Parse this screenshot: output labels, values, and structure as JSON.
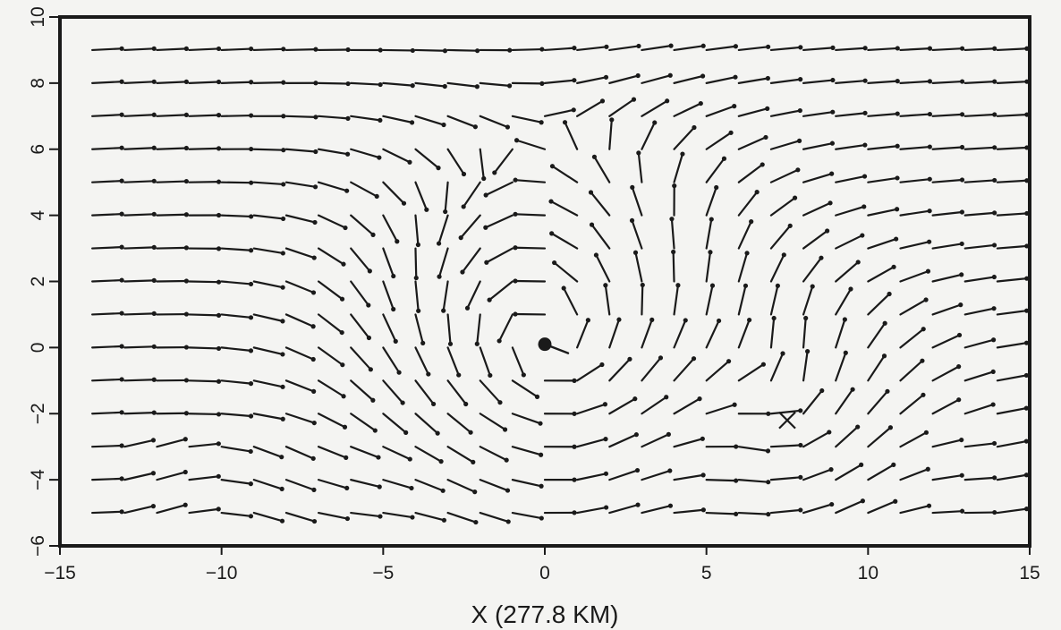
{
  "chart_data": {
    "type": "scatter",
    "title": "",
    "xlabel": "X (277.8 KM)",
    "ylabel": "",
    "xlim": [
      -15,
      15
    ],
    "ylim": [
      -6,
      10
    ],
    "x_ticks": [
      -15,
      -10,
      -5,
      0,
      5,
      10,
      15
    ],
    "x_tick_labels": [
      "−15",
      "−10",
      "−5",
      "0",
      "5",
      "10",
      "15"
    ],
    "y_ticks": [
      -6,
      -4,
      -2,
      0,
      2,
      4,
      6,
      8,
      10
    ],
    "y_tick_labels": [
      "−6",
      "−4",
      "−2",
      "0",
      "2",
      "4",
      "6",
      "8",
      "10"
    ],
    "grid": false,
    "legend": "none",
    "grid_x": [
      -14,
      -13,
      -12,
      -11,
      -10,
      -9,
      -8,
      -7,
      -6,
      -5,
      -4,
      -3,
      -2,
      -1,
      0,
      1,
      2,
      3,
      4,
      5,
      6,
      7,
      8,
      9,
      10,
      11,
      12,
      13,
      14
    ],
    "grid_y": [
      9,
      8,
      7,
      6,
      5,
      4,
      3,
      2,
      1,
      0,
      -1,
      -2,
      -3,
      -4,
      -5
    ],
    "center_marker": {
      "x": 0,
      "y": 0.1
    },
    "cross_marker": {
      "x": 7.5,
      "y": -2.2
    }
  },
  "colors": {
    "ink": "#1a1a1a",
    "background": "#f4f4f2"
  }
}
